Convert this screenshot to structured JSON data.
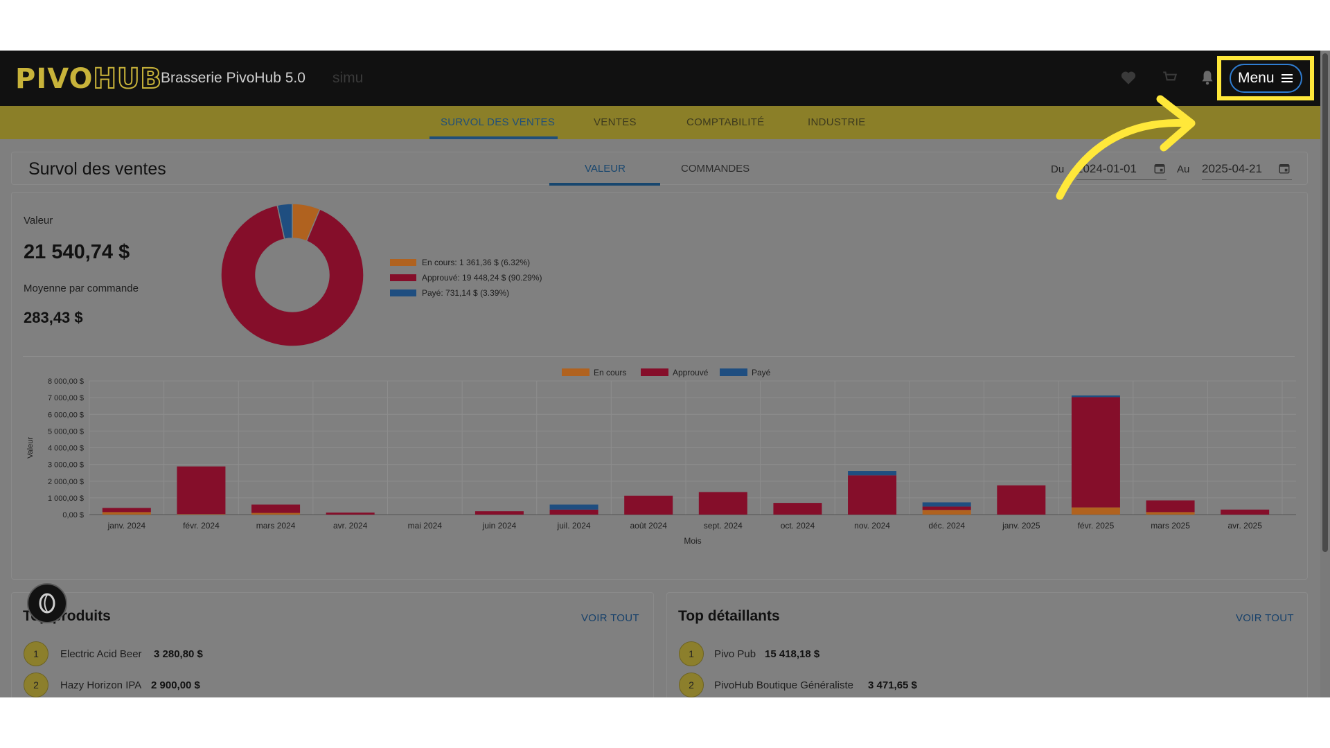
{
  "app": {
    "logo": {
      "part1": "PIVO",
      "part2": "HUB"
    },
    "brand": "Brasserie PivoHub 5.0",
    "environment": "simu",
    "menu_label": "Menu"
  },
  "nav": {
    "tabs": [
      "SURVOL DES VENTES",
      "VENTES",
      "COMPTABILITÉ",
      "INDUSTRIE"
    ],
    "active": "SURVOL DES VENTES"
  },
  "page": {
    "title": "Survol des ventes",
    "subtabs": [
      "VALEUR",
      "COMMANDES"
    ],
    "active_subtab": "VALEUR",
    "from_label": "Du",
    "from_value": "2024-01-01",
    "to_label": "Au",
    "to_value": "2025-04-21"
  },
  "summary": {
    "value_label": "Valeur",
    "value": "21 540,74 $",
    "avg_label": "Moyenne par commande",
    "avg_value": "283,43 $"
  },
  "colors": {
    "en_cours": "#b0621f",
    "approuve": "#850e2a",
    "paye": "#1f4e80"
  },
  "chart_data": [
    {
      "type": "pie",
      "labels": [
        "En cours",
        "Approuvé",
        "Payé"
      ],
      "values": [
        1361.36,
        19448.24,
        731.14
      ],
      "percent": [
        6.32,
        90.29,
        3.39
      ],
      "legend": [
        "En cours: 1 361,36 $ (6.32%)",
        "Approuvé: 19 448,24 $ (90.29%)",
        "Payé: 731,14 $ (3.39%)"
      ]
    },
    {
      "type": "bar",
      "stacked": true,
      "xlabel": "Mois",
      "ylabel": "Valeur",
      "ylim": [
        0,
        8000
      ],
      "yticks": [
        "0,00 $",
        "1 000,00 $",
        "2 000,00 $",
        "3 000,00 $",
        "4 000,00 $",
        "5 000,00 $",
        "6 000,00 $",
        "7 000,00 $",
        "8 000,00 $"
      ],
      "categories": [
        "janv. 2024",
        "févr. 2024",
        "mars 2024",
        "avr. 2024",
        "mai 2024",
        "juin 2024",
        "juil. 2024",
        "août 2024",
        "sept. 2024",
        "oct. 2024",
        "nov. 2024",
        "déc. 2024",
        "janv. 2025",
        "févr. 2025",
        "mars 2025",
        "avr. 2025"
      ],
      "series": [
        {
          "name": "En cours",
          "values": [
            150,
            30,
            100,
            0,
            0,
            0,
            0,
            0,
            0,
            0,
            0,
            280,
            0,
            430,
            150,
            0
          ]
        },
        {
          "name": "Approuvé",
          "values": [
            250,
            2850,
            500,
            120,
            0,
            200,
            300,
            1130,
            1350,
            700,
            2350,
            200,
            1750,
            6600,
            700,
            300
          ]
        },
        {
          "name": "Payé",
          "values": [
            0,
            0,
            0,
            0,
            0,
            0,
            300,
            0,
            0,
            0,
            260,
            250,
            0,
            100,
            0,
            0
          ]
        }
      ],
      "legend_position": "top-center",
      "grid": true
    }
  ],
  "top_products": {
    "title": "Top produits",
    "link": "VOIR TOUT",
    "items": [
      {
        "rank": "1",
        "name": "Electric Acid Beer",
        "value": "3 280,80 $"
      },
      {
        "rank": "2",
        "name": "Hazy Horizon IPA",
        "value": "2 900,00 $"
      }
    ]
  },
  "top_retailers": {
    "title": "Top détaillants",
    "link": "VOIR TOUT",
    "items": [
      {
        "rank": "1",
        "name": "Pivo Pub",
        "value": "15 418,18 $"
      },
      {
        "rank": "2",
        "name": "PivoHub Boutique Généraliste",
        "value": "3 471,65 $"
      }
    ]
  }
}
